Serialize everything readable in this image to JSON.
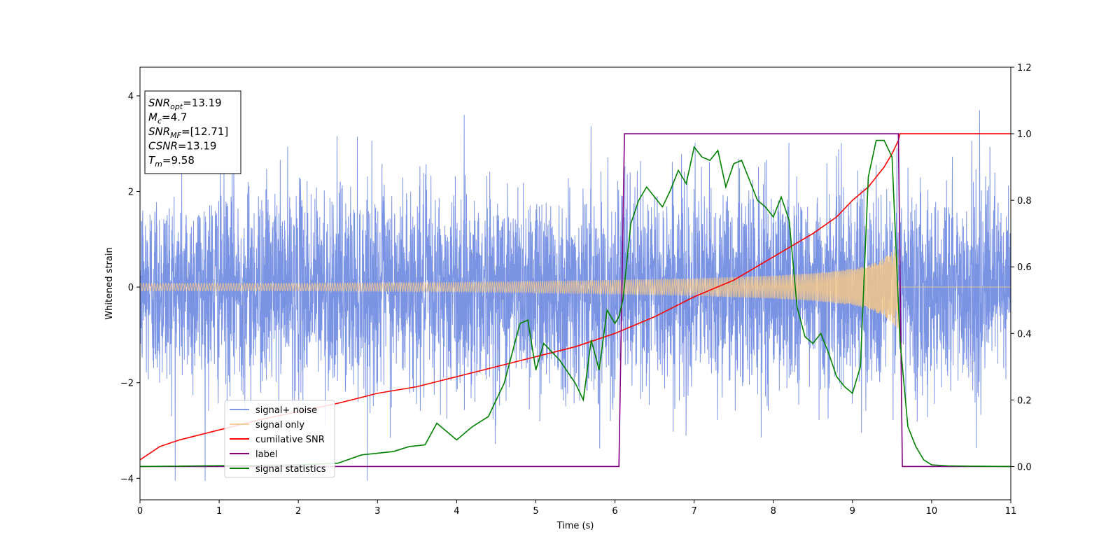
{
  "chart_data": {
    "type": "line",
    "xlabel": "Time (s)",
    "ylabel_left": "Whitened strain",
    "ylabel_right": "",
    "xlim": [
      0,
      11
    ],
    "ylim_left": [
      -4.45,
      4.6
    ],
    "ylim_right": [
      -0.1,
      1.2
    ],
    "x_ticks": [
      0,
      1,
      2,
      3,
      4,
      5,
      6,
      7,
      8,
      9,
      10,
      11
    ],
    "y_ticks_left": [
      -4,
      -2,
      0,
      2,
      4
    ],
    "y_ticks_left_labels": [
      "−4",
      "−2",
      "0",
      "2",
      "4"
    ],
    "y_ticks_right": [
      0.0,
      0.2,
      0.4,
      0.6,
      0.8,
      1.0,
      1.2
    ],
    "y_ticks_right_labels": [
      "0.0",
      "0.2",
      "0.4",
      "0.6",
      "0.8",
      "1.0",
      "1.2"
    ],
    "grid": false,
    "legend_placement": "lower-left",
    "info_box": {
      "lines": [
        {
          "sym": "SNR",
          "sub": "opt",
          "val": "=13.19"
        },
        {
          "sym": "M",
          "sub": "c",
          "val": "=4.7"
        },
        {
          "sym": "SNR",
          "sub": "MF",
          "val": "=[12.71]"
        },
        {
          "sym": "CSNR",
          "sub": "",
          "val": "=13.19"
        },
        {
          "sym": "T",
          "sub": "m",
          "val": "=9.58"
        }
      ]
    },
    "series": [
      {
        "name": "signal+ noise",
        "axis": "left",
        "color": "#6b87e0",
        "style": "noise band",
        "envelope": {
          "x": [
            0,
            11
          ],
          "sd": 1.05,
          "spike_max": 3.7,
          "spike_min": -4.05
        }
      },
      {
        "name": "signal only",
        "axis": "left",
        "color": "#f5c88a",
        "style": "chirp",
        "amplitude": {
          "x": [
            0,
            1,
            2,
            3,
            4,
            5,
            6,
            7,
            8,
            8.5,
            9,
            9.2,
            9.4,
            9.5,
            9.58
          ],
          "y": [
            0.08,
            0.08,
            0.08,
            0.09,
            0.1,
            0.12,
            0.15,
            0.18,
            0.24,
            0.29,
            0.38,
            0.46,
            0.6,
            0.75,
            0.9
          ]
        },
        "end_x": 9.58,
        "after_end_y": 0
      },
      {
        "name": "cumilative SNR",
        "axis": "right",
        "color": "#ff0000",
        "x": [
          0,
          0.25,
          0.5,
          1,
          1.5,
          2,
          2.5,
          3,
          3.5,
          4,
          4.5,
          5,
          5.5,
          6,
          6.5,
          7,
          7.5,
          8,
          8.5,
          8.8,
          9,
          9.2,
          9.4,
          9.5,
          9.58,
          9.6,
          11
        ],
        "y": [
          0.02,
          0.06,
          0.08,
          0.11,
          0.14,
          0.165,
          0.19,
          0.22,
          0.24,
          0.27,
          0.3,
          0.33,
          0.36,
          0.4,
          0.45,
          0.51,
          0.56,
          0.63,
          0.7,
          0.75,
          0.8,
          0.84,
          0.9,
          0.94,
          0.98,
          1.0,
          1.0
        ]
      },
      {
        "name": "label",
        "axis": "right",
        "color": "#800080",
        "x": [
          0,
          6.05,
          6.12,
          9.58,
          9.63,
          11
        ],
        "y": [
          0,
          0,
          1,
          1,
          0,
          0
        ]
      },
      {
        "name": "signal statistics",
        "axis": "right",
        "color": "#008000",
        "x": [
          0,
          2.0,
          2.5,
          2.8,
          3.0,
          3.2,
          3.4,
          3.6,
          3.75,
          3.9,
          4.0,
          4.2,
          4.4,
          4.6,
          4.8,
          4.9,
          5.0,
          5.1,
          5.3,
          5.5,
          5.6,
          5.7,
          5.8,
          5.9,
          6.0,
          6.05,
          6.1,
          6.2,
          6.3,
          6.4,
          6.6,
          6.7,
          6.8,
          6.9,
          7.0,
          7.1,
          7.2,
          7.3,
          7.4,
          7.5,
          7.6,
          7.7,
          7.8,
          7.9,
          8.0,
          8.1,
          8.2,
          8.3,
          8.4,
          8.5,
          8.6,
          8.7,
          8.8,
          8.9,
          9.0,
          9.1,
          9.2,
          9.3,
          9.4,
          9.5,
          9.6,
          9.7,
          9.8,
          9.9,
          10.0,
          10.2,
          10.5,
          11.0
        ],
        "y": [
          0,
          0.005,
          0.01,
          0.035,
          0.04,
          0.045,
          0.06,
          0.065,
          0.13,
          0.1,
          0.08,
          0.12,
          0.15,
          0.25,
          0.43,
          0.44,
          0.29,
          0.37,
          0.32,
          0.25,
          0.2,
          0.38,
          0.29,
          0.47,
          0.43,
          0.45,
          0.5,
          0.73,
          0.8,
          0.84,
          0.78,
          0.83,
          0.89,
          0.85,
          0.96,
          0.93,
          0.92,
          0.95,
          0.84,
          0.91,
          0.92,
          0.86,
          0.8,
          0.78,
          0.75,
          0.81,
          0.74,
          0.48,
          0.39,
          0.37,
          0.4,
          0.34,
          0.27,
          0.24,
          0.22,
          0.3,
          0.87,
          0.98,
          0.98,
          0.93,
          0.38,
          0.12,
          0.06,
          0.02,
          0.005,
          0.002,
          0.001,
          0
        ]
      }
    ]
  }
}
